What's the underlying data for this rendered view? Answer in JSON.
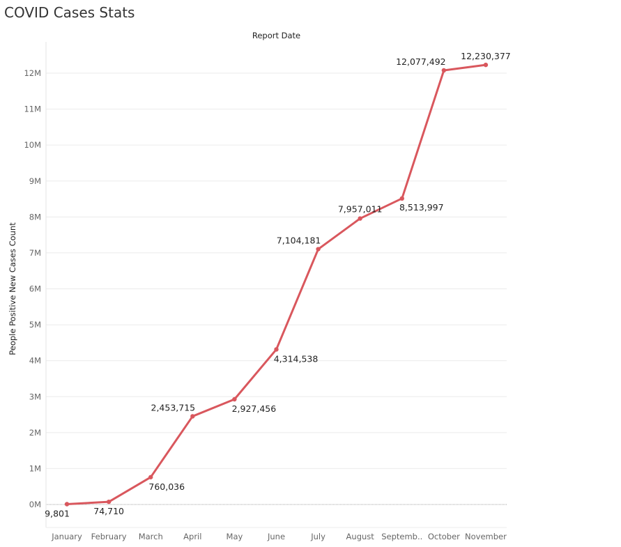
{
  "title": "COVID Cases Stats",
  "colors": {
    "line": "#d9575d",
    "grid": "#ebebeb",
    "zero": "#a0a0a0"
  },
  "chart_data": {
    "type": "line",
    "xlabel": "Report Date",
    "ylabel": "People Positive New Cases Count",
    "x_axis_position": "top",
    "categories": [
      "January",
      "February",
      "March",
      "April",
      "May",
      "June",
      "July",
      "August",
      "Septemb..",
      "October",
      "November"
    ],
    "series": [
      {
        "values": [
          9801,
          74710,
          760036,
          2453715,
          2927456,
          4314538,
          7104181,
          7957011,
          8513997,
          12077492,
          12230377
        ]
      }
    ],
    "data_labels": [
      "9,801",
      "74,710",
      "760,036",
      "2,453,715",
      "2,927,456",
      "4,314,538",
      "7,104,181",
      "7,957,011",
      "8,513,997",
      "12,077,492",
      "12,230,377"
    ],
    "ylim": [
      0,
      12000000
    ],
    "yticks": [
      {
        "value": 0,
        "label": "0M"
      },
      {
        "value": 1000000,
        "label": "1M"
      },
      {
        "value": 2000000,
        "label": "2M"
      },
      {
        "value": 3000000,
        "label": "3M"
      },
      {
        "value": 4000000,
        "label": "4M"
      },
      {
        "value": 5000000,
        "label": "5M"
      },
      {
        "value": 6000000,
        "label": "6M"
      },
      {
        "value": 7000000,
        "label": "7M"
      },
      {
        "value": 8000000,
        "label": "8M"
      },
      {
        "value": 9000000,
        "label": "9M"
      },
      {
        "value": 10000000,
        "label": "10M"
      },
      {
        "value": 11000000,
        "label": "11M"
      },
      {
        "value": 12000000,
        "label": "12M"
      }
    ],
    "grid": true,
    "legend": "none"
  }
}
